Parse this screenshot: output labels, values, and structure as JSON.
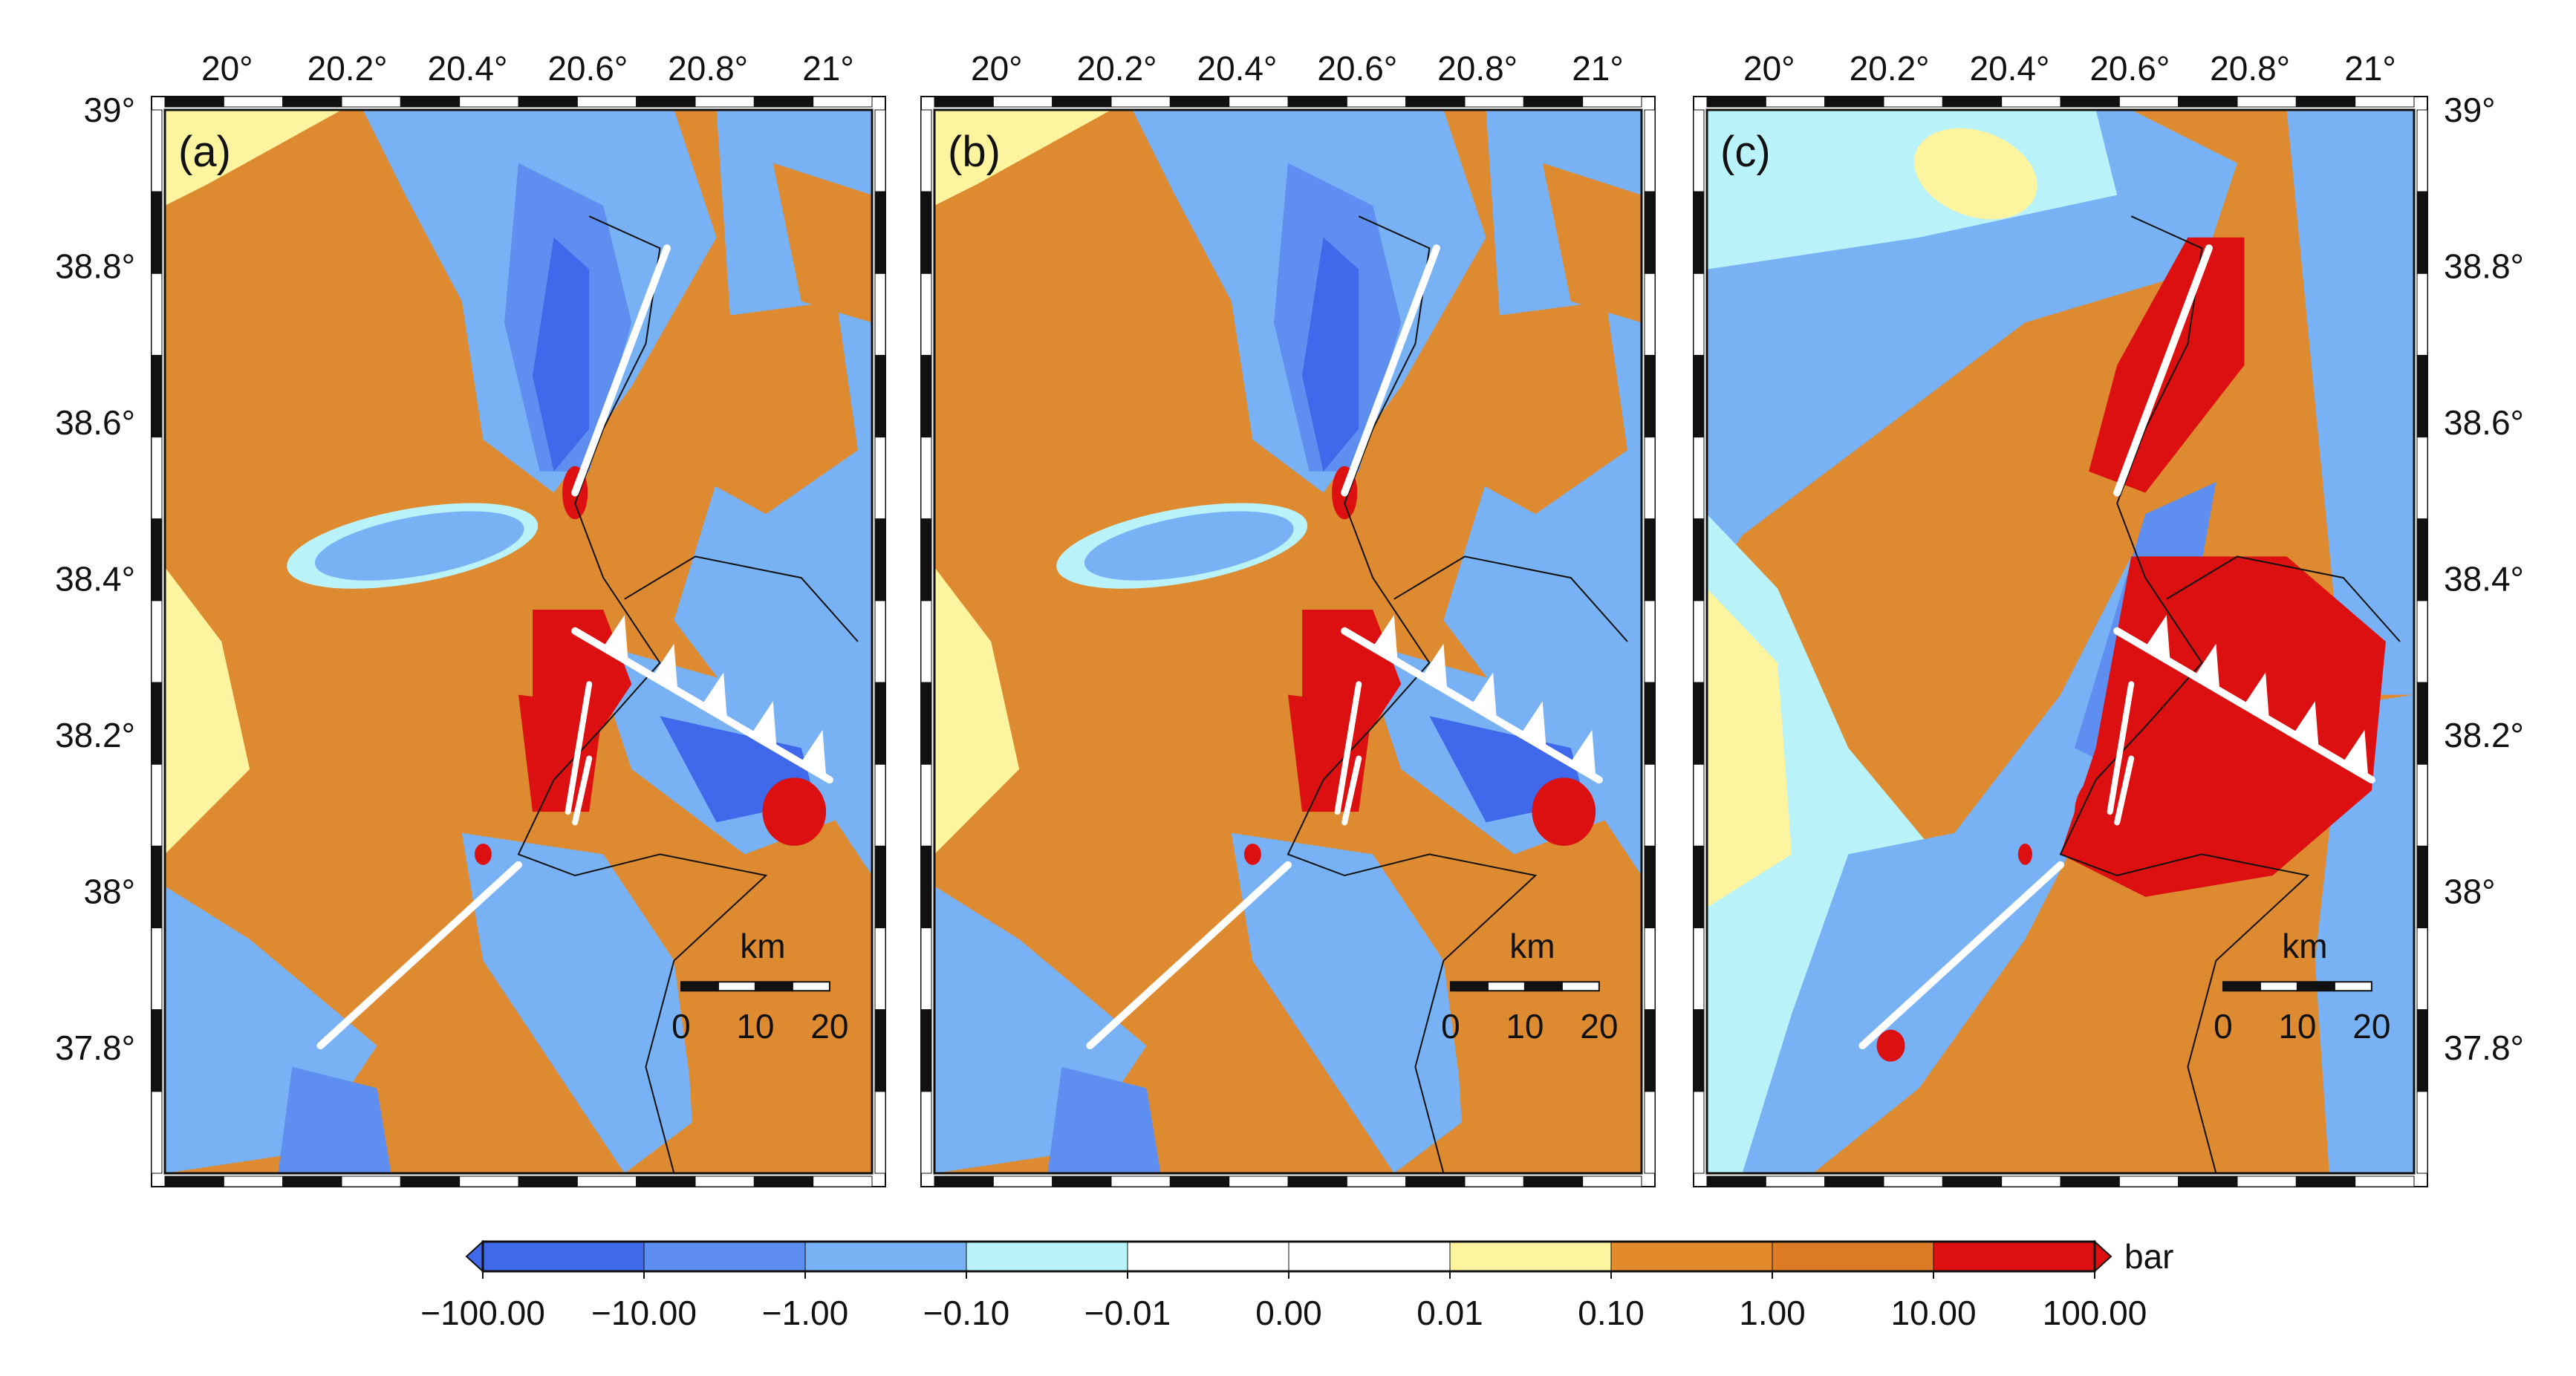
{
  "panels": [
    {
      "id": "a",
      "label": "(a)"
    },
    {
      "id": "b",
      "label": "(b)"
    },
    {
      "id": "c",
      "label": "(c)"
    }
  ],
  "map": {
    "lon_range": [
      19.9,
      21.0
    ],
    "lat_range": [
      37.7,
      39.0
    ],
    "lon_ticks": [
      "20°",
      "20.2°",
      "20.4°",
      "20.6°",
      "20.8°",
      "21°"
    ],
    "lat_ticks": [
      "39°",
      "38.8°",
      "38.6°",
      "38.4°",
      "38.2°",
      "38°",
      "37.8°"
    ]
  },
  "scale_bar": {
    "unit": "km",
    "ticks": [
      "0",
      "10",
      "20"
    ]
  },
  "colorbar": {
    "unit": "bar",
    "labels": [
      "−100.00",
      "−10.00",
      "−1.00",
      "−0.10",
      "−0.01",
      "0.00",
      "0.01",
      "0.10",
      "1.00",
      "10.00",
      "100.00"
    ],
    "colors": [
      "#3f68ea",
      "#5e8ef0",
      "#78b2f5",
      "#b9f2f8",
      "#ffffff",
      "#ffffff",
      "#fdf49f",
      "#e38a2c",
      "#dd7a24",
      "#dc1011"
    ]
  },
  "palette": {
    "ocean_base": "#dd8a30",
    "blue_dark": "#3f68ea",
    "blue_mid": "#5e8ef0",
    "blue_light": "#78b2f5",
    "cyan_pale": "#b9f2f8",
    "yellow": "#fdf49f",
    "red": "#dc1011",
    "fault": "#ffffff"
  }
}
